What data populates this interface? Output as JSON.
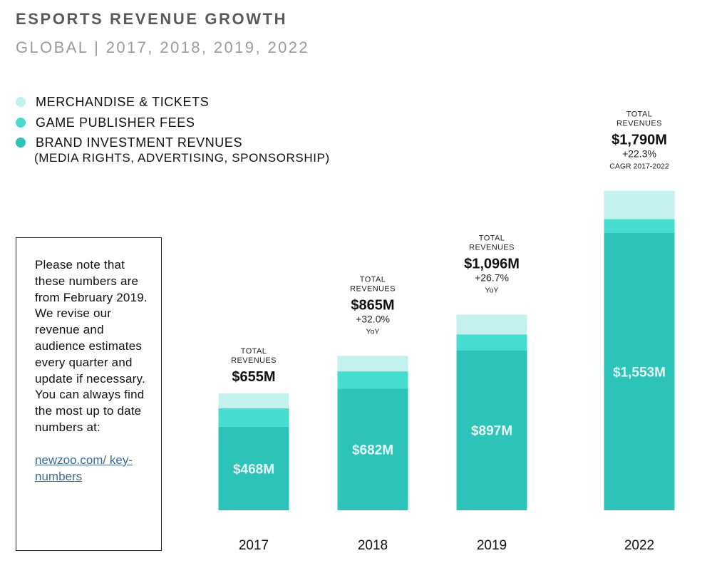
{
  "header": {
    "title": "ESPORTS REVENUE GROWTH",
    "subtitle": "GLOBAL | 2017, 2018, 2019, 2022"
  },
  "legend": {
    "items": [
      {
        "label": "MERCHANDISE & TICKETS",
        "color": "#c3f1ee"
      },
      {
        "label": "GAME PUBLISHER FEES",
        "color": "#45ddd0"
      },
      {
        "label": "BRAND INVESTMENT REVNUES",
        "color": "#2cc4b8"
      }
    ],
    "sub_label": "(MEDIA RIGHTS, ADVERTISING, SPONSORSHIP)"
  },
  "note": {
    "text": "Please note that these numbers are from February 2019. We revise our revenue and audience estimates every quarter and update if necessary. You can always find the most up to date numbers at:",
    "link_text": "newzoo.com/ key-numbers"
  },
  "chart_data": {
    "type": "bar",
    "stacked": true,
    "title": "ESPORTS REVENUE GROWTH",
    "subtitle": "GLOBAL | 2017, 2018, 2019, 2022",
    "categories": [
      "2017",
      "2018",
      "2019",
      "2022"
    ],
    "series": [
      {
        "name": "BRAND INVESTMENT REVNUES",
        "color": "#2cc4b8",
        "values": [
          468,
          682,
          897,
          1553
        ],
        "labels": [
          "$468M",
          "$682M",
          "$897M",
          "$1,553M"
        ]
      },
      {
        "name": "GAME PUBLISHER FEES",
        "color": "#45ddd0",
        "values": [
          103,
          96,
          88,
          78
        ]
      },
      {
        "name": "MERCHANDISE & TICKETS",
        "color": "#c3f1ee",
        "values": [
          84,
          87,
          111,
          159
        ]
      }
    ],
    "totals": [
      655,
      865,
      1096,
      1790
    ],
    "annotations": [
      {
        "header": "TOTAL REVENUES",
        "total": "$655M",
        "growth": "",
        "growth_note": ""
      },
      {
        "header": "TOTAL REVENUES",
        "total": "$865M",
        "growth": "+32.0%",
        "growth_note": "YoY"
      },
      {
        "header": "TOTAL REVENUES",
        "total": "$1,096M",
        "growth": "+26.7%",
        "growth_note": "YoY"
      },
      {
        "header": "TOTAL REVENUES",
        "total": "$1,790M",
        "growth": "+22.3%",
        "growth_note": "CAGR 2017-2022"
      }
    ],
    "unit": "$M",
    "xlabel": "",
    "ylabel": "",
    "ylim": [
      0,
      1790
    ],
    "grid": false,
    "legend_position": "top-left"
  }
}
